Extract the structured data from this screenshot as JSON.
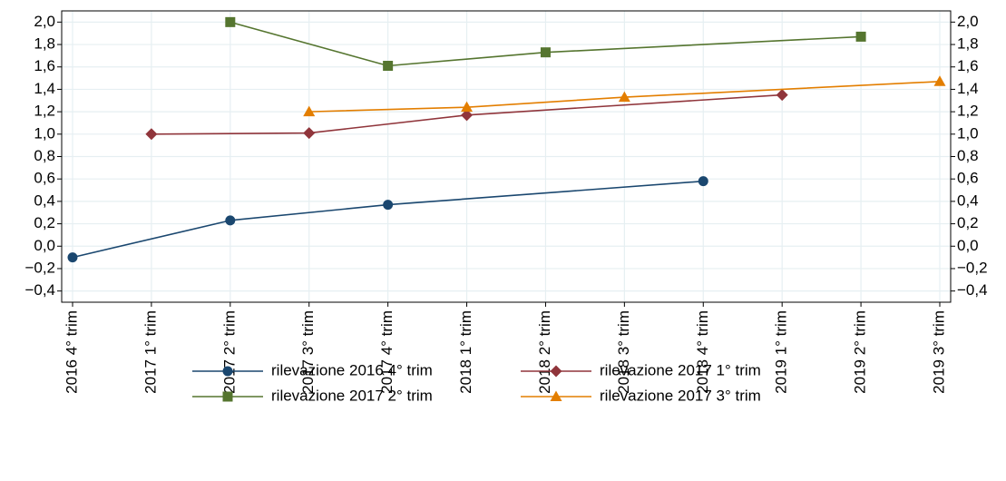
{
  "chart_data": {
    "type": "line",
    "categories": [
      "2016 4° trim",
      "2017 1° trim",
      "2017 2° trim",
      "2017 3° trim",
      "2017 4° trim",
      "2018 1° trim",
      "2018 2° trim",
      "2018 3° trim",
      "2018 4° trim",
      "2019 1° trim",
      "2019 2° trim",
      "2019 3° trim"
    ],
    "series": [
      {
        "name": "rilevazione 2016 4° trim",
        "color": "#1a476f",
        "marker": "circle",
        "x": [
          "2016 4° trim",
          "2017 2° trim",
          "2017 4° trim",
          "2018 4° trim"
        ],
        "values": [
          -0.1,
          0.23,
          0.37,
          0.58
        ]
      },
      {
        "name": "rilevazione 2017 1° trim",
        "color": "#90353b",
        "marker": "diamond",
        "x": [
          "2017 1° trim",
          "2017 3° trim",
          "2018 1° trim",
          "2019 1° trim"
        ],
        "values": [
          1.0,
          1.01,
          1.17,
          1.35
        ]
      },
      {
        "name": "rilevazione 2017 2° trim",
        "color": "#55752f",
        "marker": "square",
        "x": [
          "2017 2° trim",
          "2017 4° trim",
          "2018 2° trim",
          "2019 2° trim"
        ],
        "values": [
          2.0,
          1.61,
          1.73,
          1.87
        ]
      },
      {
        "name": "rilevazione 2017 3° trim",
        "color": "#e37e00",
        "marker": "triangle",
        "x": [
          "2017 3° trim",
          "2018 1° trim",
          "2018 3° trim",
          "2019 3° trim"
        ],
        "values": [
          1.2,
          1.24,
          1.33,
          1.47
        ]
      }
    ],
    "ylim": [
      -0.5,
      2.1
    ],
    "yticks": [
      {
        "value": -0.4,
        "label": "−0,4"
      },
      {
        "value": -0.2,
        "label": "−0,2"
      },
      {
        "value": 0,
        "label": "0,0"
      },
      {
        "value": 0.2,
        "label": "0,2"
      },
      {
        "value": 0.4,
        "label": "0,4"
      },
      {
        "value": 0.6,
        "label": "0,6"
      },
      {
        "value": 0.8,
        "label": "0,8"
      },
      {
        "value": 1,
        "label": "1,0"
      },
      {
        "value": 1.2,
        "label": "1,2"
      },
      {
        "value": 1.4,
        "label": "1,4"
      },
      {
        "value": 1.6,
        "label": "1,6"
      },
      {
        "value": 1.8,
        "label": "1,8"
      },
      {
        "value": 2,
        "label": "2,0"
      }
    ],
    "y2lim": [
      -0.5,
      2.1
    ],
    "y2ticks": [
      {
        "value": -0.4,
        "label": "−0,4"
      },
      {
        "value": -0.2,
        "label": "−0,2"
      },
      {
        "value": 0,
        "label": "0,0"
      },
      {
        "value": 0.2,
        "label": "0,2"
      },
      {
        "value": 0.4,
        "label": "0,4"
      },
      {
        "value": 0.6,
        "label": "0,6"
      },
      {
        "value": 0.8,
        "label": "0,8"
      },
      {
        "value": 1,
        "label": "1,0"
      },
      {
        "value": 1.2,
        "label": "1,2"
      },
      {
        "value": 1.4,
        "label": "1,4"
      },
      {
        "value": 1.6,
        "label": "1,6"
      },
      {
        "value": 1.8,
        "label": "1,8"
      },
      {
        "value": 2,
        "label": "2,0"
      }
    ],
    "grid": true,
    "legend": "bottom"
  }
}
